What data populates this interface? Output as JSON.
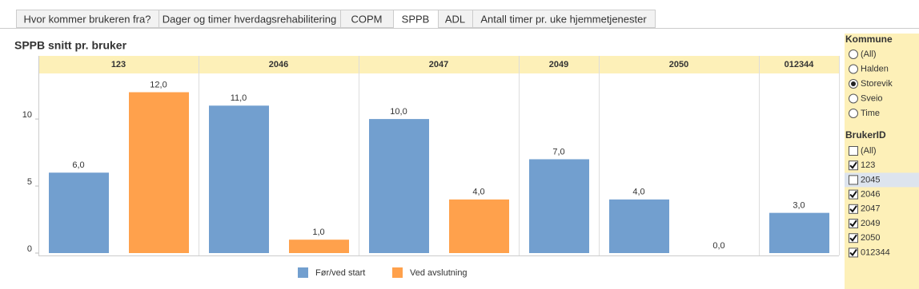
{
  "tabs": [
    "Hvor kommer brukeren fra?",
    "Dager og timer hverdagsrehabilitering",
    "COPM",
    "SPPB",
    "ADL",
    "Antall timer pr. uke hjemmetjenester"
  ],
  "active_tab": 3,
  "chart_data": {
    "type": "bar",
    "title": "SPPB snitt pr. bruker",
    "categories": [
      "123",
      "2046",
      "2047",
      "2049",
      "2050",
      "012344"
    ],
    "series": [
      {
        "name": "Før/ved start",
        "color": "#729fcf",
        "values": [
          6,
          11,
          10,
          7,
          4,
          3
        ],
        "value_labels": [
          "6,0",
          "11,0",
          "10,0",
          "7,0",
          "4,0",
          "3,0"
        ]
      },
      {
        "name": "Ved avslutning",
        "color": "#ffa14c",
        "values": [
          12,
          1,
          4,
          null,
          0,
          null
        ],
        "value_labels": [
          "12,0",
          "1,0",
          "4,0",
          null,
          "0,0",
          null
        ]
      }
    ],
    "ylim": [
      0,
      13.4
    ],
    "yticks": [
      0,
      5,
      10
    ],
    "grid": false,
    "legend": "bottom"
  },
  "filters": {
    "kommune": {
      "title": "Kommune",
      "options": [
        "(All)",
        "Halden",
        "Storevik",
        "Sveio",
        "Time"
      ],
      "selected": 2
    },
    "bruker_id": {
      "title": "BrukerID",
      "options": [
        "(All)",
        "123",
        "2045",
        "2046",
        "2047",
        "2049",
        "2050",
        "012344"
      ],
      "checked": [
        false,
        true,
        false,
        true,
        true,
        true,
        true,
        true
      ],
      "highlighted": 2
    }
  }
}
